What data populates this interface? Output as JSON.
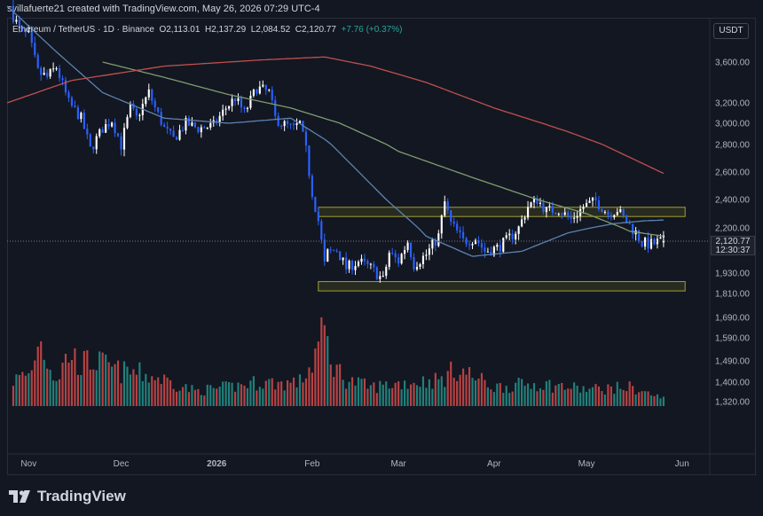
{
  "header": {
    "attribution": "svillafuerte21 created with TradingView.com, May 26, 2026 07:29 UTC-4"
  },
  "legend": {
    "symbol": "Ethereum / TetherUS · 1D · Binance",
    "open": "O2,113.01",
    "high": "H2,137.29",
    "low": "L2,084.52",
    "close": "C2,120.77",
    "change": "+7.76 (+0.37%)"
  },
  "currency_label": "USDT",
  "last_price": {
    "price": "2,120.77",
    "countdown": "12:30:37"
  },
  "footer": {
    "logo_text": "TradingView"
  },
  "colors": {
    "background": "#131722",
    "up_candle": "#ffffff",
    "down_candle": "#2962ff",
    "volume_up": "#26a69a",
    "volume_down": "#ef5350",
    "ma_fast": "#5b83b0",
    "ma_mid": "#7f9c6f",
    "ma_slow": "#c0504d",
    "zone_border": "#a3a033",
    "zone_fill": "#3b3c1f"
  },
  "chart_data": {
    "type": "candlestick",
    "y_ticks": [
      3600,
      3200,
      3000,
      2800,
      2600,
      2400,
      2200,
      1930,
      1810,
      1690,
      1590,
      1490,
      1400,
      1320
    ],
    "y_tick_labels": [
      "3,600.00",
      "3,200.00",
      "3,000.00",
      "2,800.00",
      "2,600.00",
      "2,400.00",
      "2,200.00",
      "1,930.00",
      "1,810.00",
      "1,690.00",
      "1,590.00",
      "1,490.00",
      "1,400.00",
      "1,320.00"
    ],
    "x_ticks": [
      "Nov",
      "Dec",
      "2026",
      "Feb",
      "Mar",
      "Apr",
      "May",
      "Jun"
    ],
    "x_tick_dates": [
      "2025-11-01",
      "2025-12-01",
      "2026-01-01",
      "2026-02-01",
      "2026-03-01",
      "2026-04-01",
      "2026-05-01",
      "2026-06-01"
    ],
    "x_range": [
      "2025-10-25",
      "2026-06-10"
    ],
    "grid": false,
    "zones": [
      {
        "from": 2280,
        "to": 2345
      },
      {
        "from": 1825,
        "to": 1880
      }
    ],
    "ohlc_anchors": [
      [
        "2025-10-26",
        4150
      ],
      [
        "2025-10-29",
        3900
      ],
      [
        "2025-11-01",
        3850
      ],
      [
        "2025-11-04",
        3500
      ],
      [
        "2025-11-07",
        3450
      ],
      [
        "2025-11-10",
        3550
      ],
      [
        "2025-11-14",
        3200
      ],
      [
        "2025-11-18",
        3050
      ],
      [
        "2025-11-21",
        2760
      ],
      [
        "2025-11-25",
        2950
      ],
      [
        "2025-11-28",
        3030
      ],
      [
        "2025-12-01",
        2800
      ],
      [
        "2025-12-04",
        3150
      ],
      [
        "2025-12-06",
        3050
      ],
      [
        "2025-12-10",
        3300
      ],
      [
        "2025-12-12",
        3150
      ],
      [
        "2025-12-15",
        2950
      ],
      [
        "2025-12-18",
        2850
      ],
      [
        "2025-12-22",
        3000
      ],
      [
        "2025-12-26",
        2950
      ],
      [
        "2025-12-31",
        2980
      ],
      [
        "2026-01-04",
        3150
      ],
      [
        "2026-01-07",
        3250
      ],
      [
        "2026-01-10",
        3100
      ],
      [
        "2026-01-14",
        3350
      ],
      [
        "2026-01-18",
        3300
      ],
      [
        "2026-01-20",
        3050
      ],
      [
        "2026-01-22",
        3000
      ],
      [
        "2026-01-26",
        2950
      ],
      [
        "2026-01-28",
        3000
      ],
      [
        "2026-01-30",
        2750
      ],
      [
        "2026-02-01",
        2450
      ],
      [
        "2026-02-03",
        2250
      ],
      [
        "2026-02-05",
        1980
      ],
      [
        "2026-02-06",
        2050
      ],
      [
        "2026-02-09",
        2070
      ],
      [
        "2026-02-12",
        1960
      ],
      [
        "2026-02-16",
        2000
      ],
      [
        "2026-02-20",
        1960
      ],
      [
        "2026-02-24",
        1890
      ],
      [
        "2026-02-26",
        2050
      ],
      [
        "2026-03-01",
        2000
      ],
      [
        "2026-03-04",
        2120
      ],
      [
        "2026-03-06",
        1980
      ],
      [
        "2026-03-10",
        2040
      ],
      [
        "2026-03-14",
        2150
      ],
      [
        "2026-03-16",
        2380
      ],
      [
        "2026-03-18",
        2230
      ],
      [
        "2026-03-22",
        2120
      ],
      [
        "2026-03-26",
        2140
      ],
      [
        "2026-03-29",
        2060
      ],
      [
        "2026-04-02",
        2080
      ],
      [
        "2026-04-05",
        2120
      ],
      [
        "2026-04-09",
        2200
      ],
      [
        "2026-04-12",
        2350
      ],
      [
        "2026-04-15",
        2400
      ],
      [
        "2026-04-18",
        2320
      ],
      [
        "2026-04-22",
        2330
      ],
      [
        "2026-04-26",
        2260
      ],
      [
        "2026-04-30",
        2350
      ],
      [
        "2026-05-04",
        2390
      ],
      [
        "2026-05-08",
        2300
      ],
      [
        "2026-05-11",
        2330
      ],
      [
        "2026-05-14",
        2240
      ],
      [
        "2026-05-17",
        2170
      ],
      [
        "2026-05-19",
        2110
      ],
      [
        "2026-05-22",
        2100
      ],
      [
        "2026-05-24",
        2113
      ],
      [
        "2026-05-26",
        2120.77
      ]
    ],
    "series": [
      {
        "line_anchors": [
          [
            "2025-10-25",
            4150
          ],
          [
            "2025-11-10",
            3700
          ],
          [
            "2025-11-25",
            3300
          ],
          [
            "2025-12-15",
            3050
          ],
          [
            "2026-01-05",
            3000
          ],
          [
            "2026-01-25",
            3050
          ],
          [
            "2026-02-05",
            2850
          ],
          [
            "2026-02-25",
            2400
          ],
          [
            "2026-03-10",
            2150
          ],
          [
            "2026-03-25",
            2030
          ],
          [
            "2026-04-10",
            2060
          ],
          [
            "2026-04-25",
            2170
          ],
          [
            "2026-05-10",
            2230
          ],
          [
            "2026-05-20",
            2250
          ],
          [
            "2026-05-26",
            2255
          ]
        ]
      },
      {
        "line_anchors": [
          [
            "2025-11-25",
            3600
          ],
          [
            "2025-12-15",
            3450
          ],
          [
            "2026-01-05",
            3280
          ],
          [
            "2026-01-25",
            3150
          ],
          [
            "2026-02-10",
            3000
          ],
          [
            "2026-03-01",
            2750
          ],
          [
            "2026-03-25",
            2560
          ],
          [
            "2026-04-15",
            2400
          ],
          [
            "2026-05-01",
            2300
          ],
          [
            "2026-05-15",
            2180
          ],
          [
            "2026-05-26",
            2150
          ]
        ]
      },
      {
        "line_anchors": [
          [
            "2025-10-25",
            3200
          ],
          [
            "2025-11-15",
            3420
          ],
          [
            "2025-12-15",
            3560
          ],
          [
            "2026-01-15",
            3620
          ],
          [
            "2026-02-05",
            3650
          ],
          [
            "2026-02-20",
            3560
          ],
          [
            "2026-03-10",
            3400
          ],
          [
            "2026-04-01",
            3150
          ],
          [
            "2026-04-25",
            2920
          ],
          [
            "2026-05-10",
            2760
          ],
          [
            "2026-05-26",
            2590
          ]
        ]
      }
    ],
    "volume_anchors": [
      [
        "2025-10-26",
        0.32
      ],
      [
        "2025-11-02",
        0.45
      ],
      [
        "2025-11-04",
        0.92
      ],
      [
        "2025-11-10",
        0.35
      ],
      [
        "2025-11-14",
        0.7
      ],
      [
        "2025-11-18",
        0.55
      ],
      [
        "2025-11-22",
        0.6
      ],
      [
        "2025-12-01",
        0.45
      ],
      [
        "2025-12-05",
        0.45
      ],
      [
        "2025-12-15",
        0.35
      ],
      [
        "2025-12-25",
        0.2
      ],
      [
        "2026-01-05",
        0.25
      ],
      [
        "2026-01-15",
        0.32
      ],
      [
        "2026-01-22",
        0.3
      ],
      [
        "2026-01-28",
        0.32
      ],
      [
        "2026-02-01",
        0.55
      ],
      [
        "2026-02-03",
        0.85
      ],
      [
        "2026-02-05",
        1.0
      ],
      [
        "2026-02-07",
        0.6
      ],
      [
        "2026-02-12",
        0.35
      ],
      [
        "2026-02-20",
        0.25
      ],
      [
        "2026-03-01",
        0.3
      ],
      [
        "2026-03-15",
        0.35
      ],
      [
        "2026-03-20",
        0.5
      ],
      [
        "2026-04-01",
        0.25
      ],
      [
        "2026-04-15",
        0.3
      ],
      [
        "2026-05-01",
        0.22
      ],
      [
        "2026-05-15",
        0.25
      ],
      [
        "2026-05-26",
        0.1
      ]
    ]
  }
}
